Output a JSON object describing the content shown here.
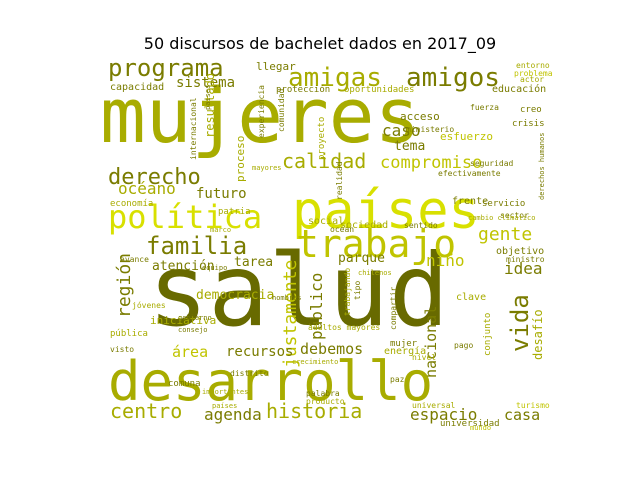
{
  "chart_data": {
    "type": "wordcloud",
    "title": "50 discursos de bachelet dados en 2017_09",
    "background": "#ffffff",
    "palette": [
      "#a8ac00",
      "#d8e000",
      "#7a7c00",
      "#c0c400",
      "#686a00"
    ],
    "words": [
      {
        "text": "salud",
        "color": "#686a00"
      },
      {
        "text": "mujeres",
        "color": "#a8ac00"
      },
      {
        "text": "países",
        "color": "#d8e000"
      },
      {
        "text": "desarrollo",
        "color": "#a8ac00"
      },
      {
        "text": "trabajo",
        "color": "#c0c400"
      },
      {
        "text": "política",
        "color": "#d8e000"
      },
      {
        "text": "amigas",
        "color": "#a8ac00"
      },
      {
        "text": "amigos",
        "color": "#7a7c00"
      },
      {
        "text": "programa",
        "color": "#7a7c00"
      },
      {
        "text": "derecho",
        "color": "#7a7c00"
      },
      {
        "text": "familia",
        "color": "#7a7c00"
      },
      {
        "text": "historia",
        "color": "#a8ac00"
      },
      {
        "text": "calidad",
        "color": "#a8ac00"
      },
      {
        "text": "centro",
        "color": "#a8ac00"
      },
      {
        "text": "compromiso",
        "color": "#c0c400"
      },
      {
        "text": "vida",
        "color": "#7a7c00"
      },
      {
        "text": "región",
        "color": "#7a7c00"
      },
      {
        "text": "gente",
        "color": "#c0c400"
      },
      {
        "text": "justamente",
        "color": "#c0c400"
      },
      {
        "text": "espacio",
        "color": "#7a7c00"
      },
      {
        "text": "agenda",
        "color": "#7a7c00"
      },
      {
        "text": "océano",
        "color": "#a8ac00"
      },
      {
        "text": "futuro",
        "color": "#7a7c00"
      },
      {
        "text": "atención",
        "color": "#7a7c00"
      },
      {
        "text": "debemos",
        "color": "#7a7c00"
      },
      {
        "text": "recursos",
        "color": "#7a7c00"
      },
      {
        "text": "sistema",
        "color": "#7a7c00"
      },
      {
        "text": "caso",
        "color": "#7a7c00"
      },
      {
        "text": "nacional",
        "color": "#7a7c00"
      },
      {
        "text": "público",
        "color": "#7a7c00"
      },
      {
        "text": "niño",
        "color": "#c0c400"
      },
      {
        "text": "parque",
        "color": "#7a7c00"
      },
      {
        "text": "idea",
        "color": "#7a7c00"
      },
      {
        "text": "tarea",
        "color": "#7a7c00"
      },
      {
        "text": "democracia",
        "color": "#a8ac00"
      },
      {
        "text": "área",
        "color": "#c0c400"
      },
      {
        "text": "casa",
        "color": "#7a7c00"
      },
      {
        "text": "tema",
        "color": "#7a7c00"
      },
      {
        "text": "desafío",
        "color": "#a8ac00"
      },
      {
        "text": "capacidad",
        "color": "#7a7c00"
      },
      {
        "text": "protección",
        "color": "#7a7c00"
      },
      {
        "text": "educación",
        "color": "#7a7c00"
      },
      {
        "text": "oportunidades",
        "color": "#a8ac00"
      },
      {
        "text": "patria",
        "color": "#a8ac00"
      },
      {
        "text": "resultado",
        "color": "#a8ac00"
      },
      {
        "text": "proceso",
        "color": "#a8ac00"
      },
      {
        "text": "energía",
        "color": "#a8ac00"
      },
      {
        "text": "mujer",
        "color": "#7a7c00"
      },
      {
        "text": "iniciativa",
        "color": "#a8ac00"
      },
      {
        "text": "sociedad",
        "color": "#a8ac00"
      },
      {
        "text": "social",
        "color": "#a8ac00"
      },
      {
        "text": "acceso",
        "color": "#7a7c00"
      },
      {
        "text": "esfuerzo",
        "color": "#c0c400"
      },
      {
        "text": "llegar",
        "color": "#7a7c00"
      },
      {
        "text": "frente",
        "color": "#7a7c00"
      },
      {
        "text": "objetivo",
        "color": "#7a7c00"
      },
      {
        "text": "servicio",
        "color": "#7a7c00"
      },
      {
        "text": "clave",
        "color": "#a8ac00"
      },
      {
        "text": "conjunto",
        "color": "#a8ac00"
      },
      {
        "text": "ministerio",
        "color": "#7a7c00"
      },
      {
        "text": "comuna",
        "color": "#7a7c00"
      },
      {
        "text": "universidad",
        "color": "#7a7c00"
      },
      {
        "text": "proyecto",
        "color": "#a8ac00"
      },
      {
        "text": "ministro",
        "color": "#7a7c00"
      },
      {
        "text": "economía",
        "color": "#a8ac00"
      },
      {
        "text": "crisis",
        "color": "#7a7c00"
      },
      {
        "text": "internacional",
        "color": "#7a7c00"
      },
      {
        "text": "comunidad",
        "color": "#7a7c00"
      },
      {
        "text": "experiencia",
        "color": "#7a7c00"
      },
      {
        "text": "trabajando",
        "color": "#a8ac00"
      },
      {
        "text": "adultos mayores",
        "color": "#a8ac00"
      },
      {
        "text": "realidad",
        "color": "#7a7c00"
      },
      {
        "text": "sector",
        "color": "#7a7c00"
      },
      {
        "text": "efectivamente",
        "color": "#7a7c00"
      },
      {
        "text": "seguridad",
        "color": "#7a7c00"
      },
      {
        "text": "turismo",
        "color": "#c0c400"
      },
      {
        "text": "universal",
        "color": "#a8ac00"
      },
      {
        "text": "producto",
        "color": "#a8ac00"
      },
      {
        "text": "palabra",
        "color": "#7a7c00"
      },
      {
        "text": "paz",
        "color": "#7a7c00"
      },
      {
        "text": "avance",
        "color": "#7a7c00"
      },
      {
        "text": "pública",
        "color": "#a8ac00"
      },
      {
        "text": "jóvenes",
        "color": "#a8ac00"
      },
      {
        "text": "visto",
        "color": "#7a7c00"
      },
      {
        "text": "distrito",
        "color": "#7a7c00"
      },
      {
        "text": "cambio climático",
        "color": "#a8ac00"
      },
      {
        "text": "sentido",
        "color": "#7a7c00"
      },
      {
        "text": "entorno",
        "color": "#a8ac00"
      },
      {
        "text": "problema",
        "color": "#c0c400"
      },
      {
        "text": "actor",
        "color": "#a8ac00"
      },
      {
        "text": "creo",
        "color": "#7a7c00"
      },
      {
        "text": "derechos humanos",
        "color": "#7a7c00"
      },
      {
        "text": "fuerza",
        "color": "#7a7c00"
      },
      {
        "text": "tipo",
        "color": "#7a7c00"
      },
      {
        "text": "compartir",
        "color": "#7a7c00"
      },
      {
        "text": "ocean",
        "color": "#7a7c00"
      },
      {
        "text": "nivel",
        "color": "#a8ac00"
      },
      {
        "text": "pago",
        "color": "#7a7c00"
      },
      {
        "text": "países",
        "color": "#7a7c00"
      },
      {
        "text": "crecimiento",
        "color": "#a8ac00"
      },
      {
        "text": "países",
        "color": "#a8ac00"
      },
      {
        "text": "importantes",
        "color": "#a8ac00"
      },
      {
        "text": "marco",
        "color": "#a8ac00"
      },
      {
        "text": "hombres",
        "color": "#7a7c00"
      },
      {
        "text": "gobierno",
        "color": "#7a7c00"
      },
      {
        "text": "consejo",
        "color": "#7a7c00"
      },
      {
        "text": "mayores",
        "color": "#a8ac00"
      },
      {
        "text": "chilenos",
        "color": "#a8ac00"
      },
      {
        "text": "equipo",
        "color": "#7a7c00"
      },
      {
        "text": "mundo",
        "color": "#c0c400"
      }
    ]
  }
}
